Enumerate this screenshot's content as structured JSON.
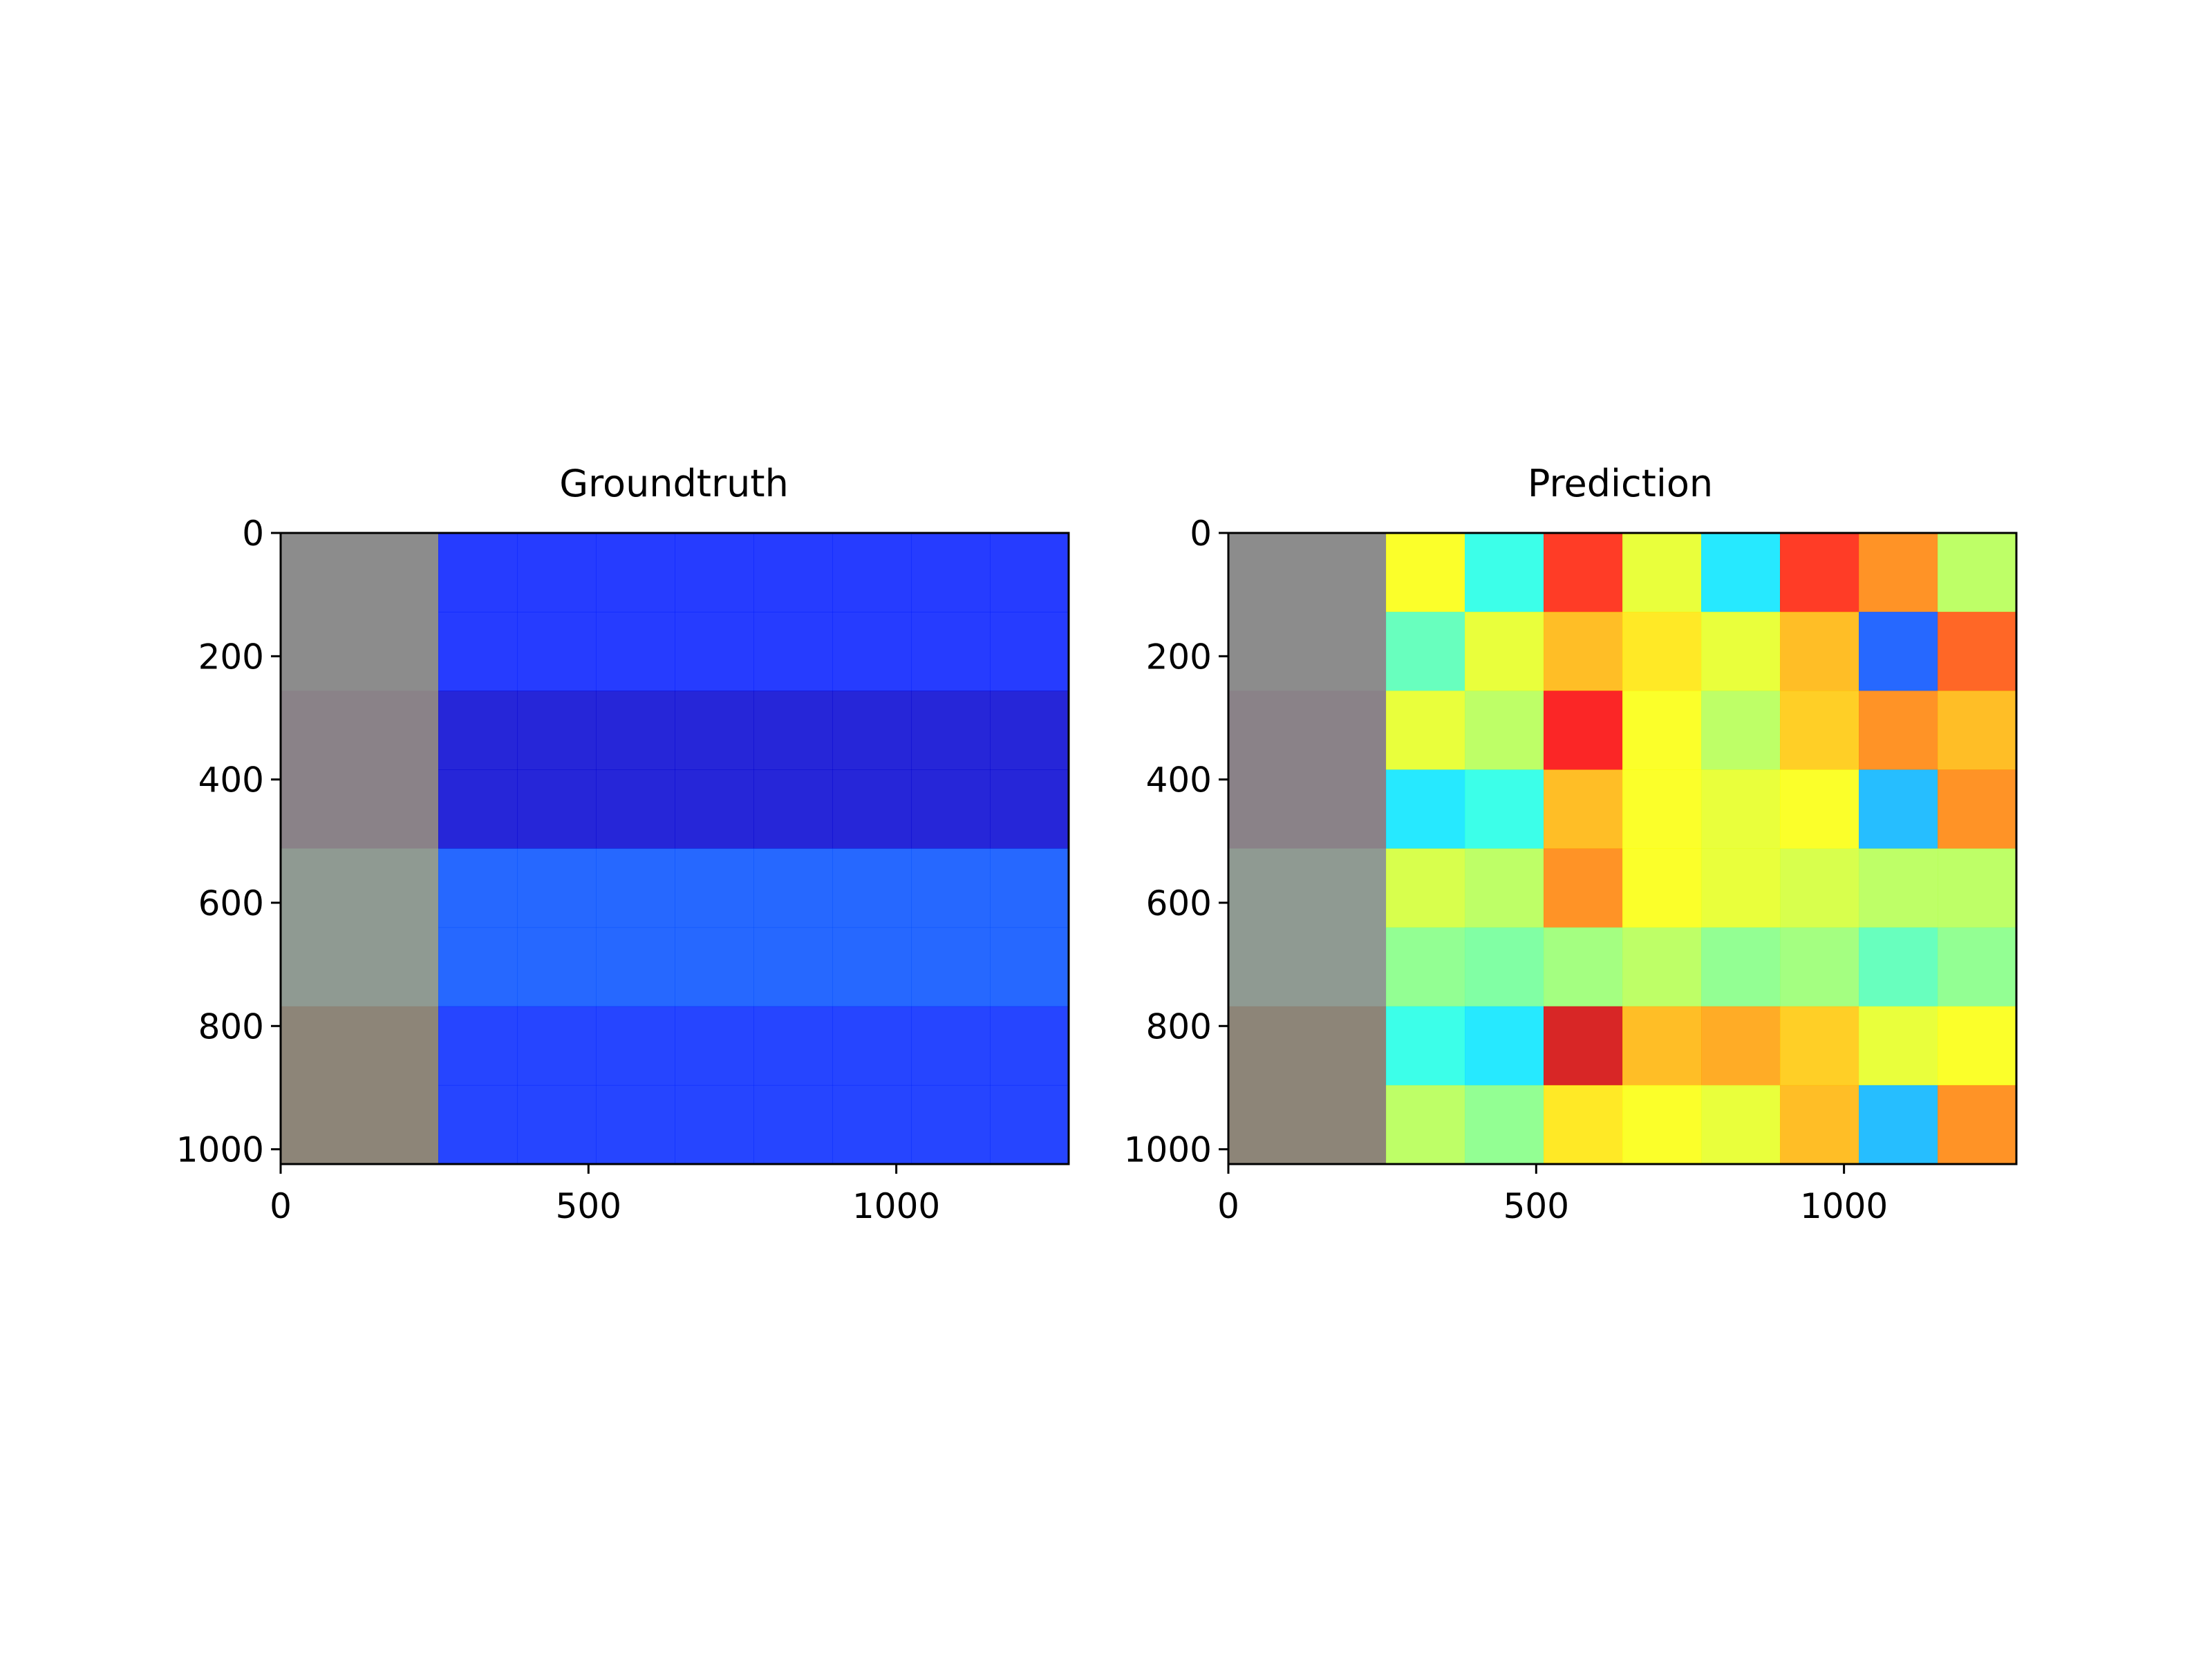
{
  "chart_data": [
    {
      "type": "heatmap",
      "title": "Groundtruth",
      "xlabel": "",
      "ylabel": "",
      "xlim": [
        0,
        1280
      ],
      "ylim": [
        1024,
        0
      ],
      "xticks": [
        0,
        500,
        1000
      ],
      "yticks": [
        0,
        200,
        400,
        600,
        800,
        1000
      ],
      "grid": false,
      "colormap": "jet",
      "input_column_width": 256,
      "tile_size": 128,
      "tile_columns": 8,
      "tile_rows": 8,
      "tile_values": [
        [
          0.15,
          0.15,
          0.15,
          0.15,
          0.15,
          0.15,
          0.15,
          0.15
        ],
        [
          0.15,
          0.15,
          0.15,
          0.15,
          0.15,
          0.15,
          0.15,
          0.15
        ],
        [
          0.08,
          0.08,
          0.08,
          0.08,
          0.08,
          0.08,
          0.08,
          0.08
        ],
        [
          0.08,
          0.08,
          0.08,
          0.08,
          0.08,
          0.08,
          0.08,
          0.08
        ],
        [
          0.2,
          0.2,
          0.2,
          0.2,
          0.2,
          0.2,
          0.2,
          0.2
        ],
        [
          0.2,
          0.2,
          0.2,
          0.2,
          0.2,
          0.2,
          0.2,
          0.2
        ],
        [
          0.16,
          0.16,
          0.16,
          0.16,
          0.16,
          0.16,
          0.16,
          0.16
        ],
        [
          0.16,
          0.16,
          0.16,
          0.16,
          0.16,
          0.16,
          0.16,
          0.16
        ]
      ]
    },
    {
      "type": "heatmap",
      "title": "Prediction",
      "xlabel": "",
      "ylabel": "",
      "xlim": [
        0,
        1280
      ],
      "ylim": [
        1024,
        0
      ],
      "xticks": [
        0,
        500,
        1000
      ],
      "yticks": [
        0,
        200,
        400,
        600,
        800,
        1000
      ],
      "grid": false,
      "colormap": "jet",
      "input_column_width": 256,
      "tile_size": 128,
      "tile_columns": 8,
      "tile_rows": 8,
      "tile_values": [
        [
          0.62,
          0.4,
          0.85,
          0.6,
          0.35,
          0.85,
          0.75,
          0.55
        ],
        [
          0.45,
          0.6,
          0.7,
          0.65,
          0.6,
          0.7,
          0.2,
          0.8
        ],
        [
          0.6,
          0.55,
          0.88,
          0.62,
          0.55,
          0.68,
          0.75,
          0.7
        ],
        [
          0.35,
          0.4,
          0.7,
          0.62,
          0.6,
          0.62,
          0.3,
          0.75
        ],
        [
          0.58,
          0.55,
          0.75,
          0.62,
          0.6,
          0.58,
          0.55,
          0.55
        ],
        [
          0.5,
          0.48,
          0.52,
          0.55,
          0.5,
          0.52,
          0.45,
          0.5
        ],
        [
          0.4,
          0.35,
          0.92,
          0.7,
          0.72,
          0.68,
          0.6,
          0.62
        ],
        [
          0.55,
          0.5,
          0.65,
          0.62,
          0.6,
          0.7,
          0.3,
          0.75
        ]
      ]
    }
  ]
}
